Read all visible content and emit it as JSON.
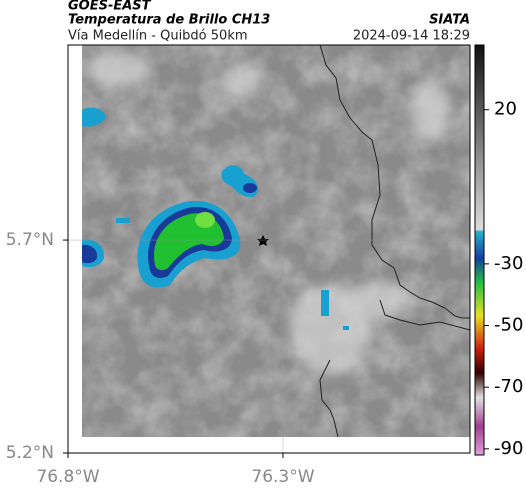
{
  "header": {
    "source": "GOES-EAST",
    "title": "Temperatura de Brillo CH13",
    "org": "SIATA",
    "subtitle": "Vía Medellín - Quibdó 50km",
    "timestamp": "2024-09-14 18:29"
  },
  "map": {
    "xlim": [
      -76.8,
      -75.865
    ],
    "ylim": [
      5.2,
      6.158
    ],
    "xticks": [
      {
        "value": -76.8,
        "label": "76.8°W"
      },
      {
        "value": -76.3,
        "label": "76.3°W"
      }
    ],
    "yticks": [
      {
        "value": 5.2,
        "label": "5.2°N"
      },
      {
        "value": 5.7,
        "label": "5.7°N"
      }
    ]
  },
  "colorbar": {
    "lim": [
      41,
      -92
    ],
    "ticks": [
      20,
      -30,
      -50,
      -70,
      -90
    ]
  }
}
